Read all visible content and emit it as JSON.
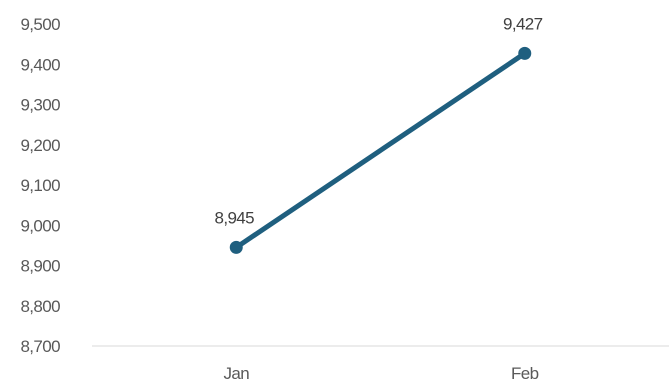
{
  "chart_data": {
    "type": "line",
    "categories": [
      "Jan",
      "Feb"
    ],
    "series": [
      {
        "values": [
          8945,
          9427
        ]
      }
    ],
    "data_labels": [
      "8,945",
      "9,427"
    ],
    "y_tick_labels": [
      "8,700",
      "8,800",
      "8,900",
      "9,000",
      "9,100",
      "9,200",
      "9,300",
      "9,400",
      "9,500"
    ],
    "ylim": [
      8700,
      9500
    ],
    "grid": false,
    "legend": "none",
    "colors": {
      "line": "#1f5f7f",
      "axis": "#d9d9d9",
      "tick_text": "#595959",
      "label_text": "#404040"
    }
  }
}
